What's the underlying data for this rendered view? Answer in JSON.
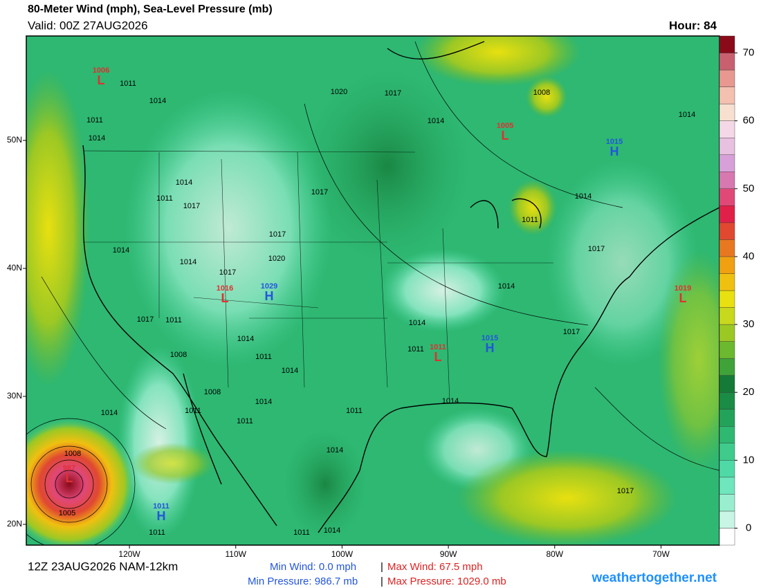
{
  "header": {
    "title": "80-Meter Wind (mph), Sea-Level Pressure (mb)",
    "valid": "Valid: 00Z 27AUG2026",
    "hour": "Hour: 84"
  },
  "map": {
    "xlim": [
      -129.7,
      -64.5
    ],
    "ylim": [
      18.38,
      58.16
    ],
    "xticks": [
      {
        "value": -120,
        "label": "120W"
      },
      {
        "value": -110,
        "label": "110W"
      },
      {
        "value": -100,
        "label": "100W"
      },
      {
        "value": -90,
        "label": "90W"
      },
      {
        "value": -80,
        "label": "80W"
      },
      {
        "value": -70,
        "label": "70W"
      }
    ],
    "yticks": [
      {
        "value": 20,
        "label": "20N"
      },
      {
        "value": 30,
        "label": "30N"
      },
      {
        "value": 40,
        "label": "40N"
      },
      {
        "value": 50,
        "label": "50N"
      }
    ],
    "centers": [
      {
        "symbol": "L",
        "value": "1006"
      },
      {
        "symbol": "L",
        "value": "1005"
      },
      {
        "symbol": "H",
        "value": "1015"
      },
      {
        "symbol": "L",
        "value": "1019"
      },
      {
        "symbol": "L",
        "value": "1016"
      },
      {
        "symbol": "H",
        "value": "1029"
      },
      {
        "symbol": "L",
        "value": "1011"
      },
      {
        "symbol": "H",
        "value": "1015"
      },
      {
        "symbol": "H",
        "value": "1011"
      },
      {
        "symbol": "L",
        "value": "987"
      }
    ],
    "isobar_labels": [
      "1011",
      "1014",
      "1011",
      "1014",
      "1020",
      "1017",
      "1014",
      "1008",
      "1014",
      "1014",
      "1011",
      "1017",
      "1017",
      "1014",
      "1011",
      "1017",
      "1014",
      "1014",
      "1017",
      "1020",
      "1017",
      "1014",
      "1017",
      "1011",
      "1014",
      "1017",
      "1014",
      "1011",
      "1008",
      "1011",
      "1014",
      "1008",
      "1014",
      "1011",
      "1014",
      "1011",
      "1011",
      "1014",
      "1014",
      "1008",
      "1005",
      "1011",
      "1011",
      "1014",
      "1017"
    ]
  },
  "colorbar": {
    "range": [
      -2.5,
      72.5
    ],
    "ticks": [
      0,
      10,
      20,
      30,
      40,
      50,
      60,
      70
    ],
    "colors": [
      "#ffffff",
      "#c8f5e6",
      "#9aeed0",
      "#6fe6bd",
      "#4fd9a6",
      "#3ecb8c",
      "#2eb872",
      "#23a35a",
      "#1a8c45",
      "#157a38",
      "#3fa33a",
      "#6cb82e",
      "#9cc824",
      "#c8d81c",
      "#e8e010",
      "#f0c010",
      "#f0a010",
      "#e87820",
      "#e04830",
      "#e02048",
      "#e04878",
      "#d878b0",
      "#d8a0d8",
      "#e8c0e0",
      "#f4d8e8",
      "#f8e0d0",
      "#f4c0b0",
      "#e89890",
      "#c86070",
      "#8b0a1a"
    ]
  },
  "footer": {
    "run": "12Z 23AUG2026 NAM-12km",
    "min_wind": "Min Wind:  0.0 mph",
    "max_wind": "Max Wind: 67.5 mph",
    "min_pressure": "Min Pressure: 986.7 mb",
    "max_pressure": "Max Pressure: 1029.0 mb",
    "separator": "|",
    "site": "weathertogether.net"
  }
}
